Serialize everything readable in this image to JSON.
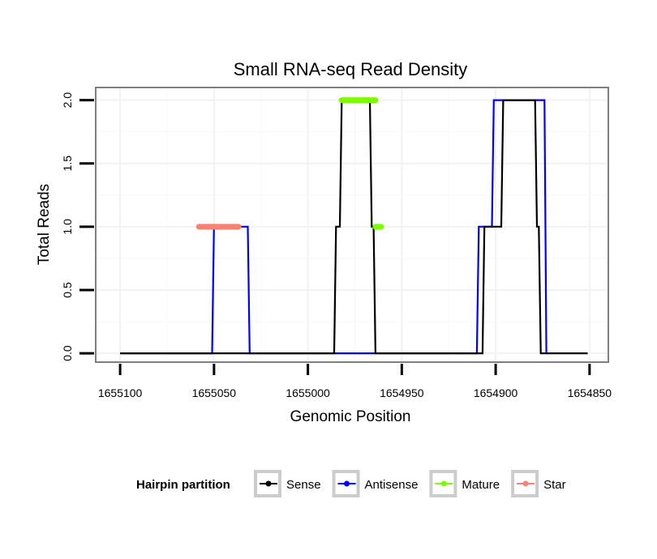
{
  "chart_data": {
    "type": "line",
    "title": "Small RNA-seq Read Density",
    "xlabel": "Genomic Position",
    "ylabel": "Total Reads",
    "x_reversed": true,
    "xlim": [
      1655113,
      1654840
    ],
    "ylim": [
      -0.07,
      2.1
    ],
    "xticks": [
      1655100,
      1655050,
      1655000,
      1654950,
      1654900,
      1654850
    ],
    "xtick_labels": [
      "1655100",
      "1655050",
      "1655000",
      "1654950",
      "1654900",
      "1654850"
    ],
    "yticks": [
      0,
      0.5,
      1,
      1.5,
      2
    ],
    "ytick_labels": [
      "0.0",
      "0.5",
      "1.0",
      "1.5",
      "2.0"
    ],
    "grid": true,
    "legend": {
      "title": "Hairpin partition",
      "position": "bottom",
      "entries": [
        "Sense",
        "Antisense",
        "Mature",
        "Star"
      ]
    },
    "colors": {
      "Sense": "#000000",
      "Antisense": "#0000ff",
      "Mature": "#7cfc00",
      "Star": "#fa8072"
    },
    "series": [
      {
        "name": "Antisense",
        "x": [
          1655100,
          1655068,
          1655067,
          1655051,
          1655050,
          1655032,
          1655031,
          1654983,
          1654982,
          1654945,
          1654944,
          1654910,
          1654909,
          1654902,
          1654901,
          1654874,
          1654873
        ],
        "y": [
          0,
          0,
          0,
          0,
          1,
          1,
          0,
          0,
          0,
          0,
          0,
          0,
          1,
          1,
          2,
          2,
          0
        ]
      },
      {
        "name": "Sense",
        "x": [
          1655100,
          1655050,
          1655049,
          1655042,
          1655041,
          1654986,
          1654985,
          1654983,
          1654982,
          1654967,
          1654966,
          1654965,
          1654964,
          1654941,
          1654940,
          1654907,
          1654906,
          1654897,
          1654896,
          1654879,
          1654878,
          1654877,
          1654876,
          1654851
        ],
        "y": [
          0,
          0,
          0,
          0,
          0,
          0,
          1,
          1,
          2,
          2,
          1,
          1,
          0,
          0,
          0,
          0,
          1,
          1,
          2,
          2,
          1,
          1,
          0,
          0
        ]
      }
    ],
    "highlights": [
      {
        "name": "Star",
        "x": [
          1655058,
          1655037
        ],
        "y": 1
      },
      {
        "name": "Mature",
        "x": [
          1654982,
          1654964
        ],
        "y": 2
      },
      {
        "name": "Mature",
        "x": [
          1654964,
          1654961
        ],
        "y": 1
      }
    ]
  }
}
